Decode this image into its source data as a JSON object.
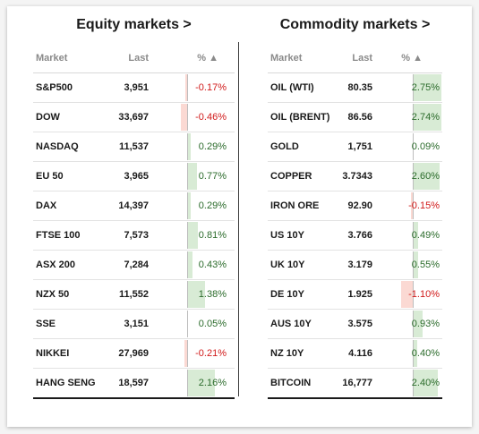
{
  "equity": {
    "title": "Equity markets >",
    "headers": {
      "market": "Market",
      "last": "Last",
      "pct": "% ▲"
    },
    "rows": [
      {
        "name": "S&P500",
        "last": "3,951",
        "pct": "-0.17%",
        "value": -0.17
      },
      {
        "name": "DOW",
        "last": "33,697",
        "pct": "-0.46%",
        "value": -0.46
      },
      {
        "name": "NASDAQ",
        "last": "11,537",
        "pct": "0.29%",
        "value": 0.29
      },
      {
        "name": "EU 50",
        "last": "3,965",
        "pct": "0.77%",
        "value": 0.77
      },
      {
        "name": "DAX",
        "last": "14,397",
        "pct": "0.29%",
        "value": 0.29
      },
      {
        "name": "FTSE 100",
        "last": "7,573",
        "pct": "0.81%",
        "value": 0.81
      },
      {
        "name": "ASX 200",
        "last": "7,284",
        "pct": "0.43%",
        "value": 0.43
      },
      {
        "name": "NZX 50",
        "last": "11,552",
        "pct": "1.38%",
        "value": 1.38
      },
      {
        "name": "SSE",
        "last": "3,151",
        "pct": "0.05%",
        "value": 0.05
      },
      {
        "name": "NIKKEI",
        "last": "27,969",
        "pct": "-0.21%",
        "value": -0.21
      },
      {
        "name": "HANG SENG",
        "last": "18,597",
        "pct": "2.16%",
        "value": 2.16
      }
    ]
  },
  "commodity": {
    "title": "Commodity markets >",
    "headers": {
      "market": "Market",
      "last": "Last",
      "pct": "% ▲"
    },
    "rows": [
      {
        "name": "OIL (WTI)",
        "last": "80.35",
        "pct": "2.75%",
        "value": 2.75
      },
      {
        "name": "OIL (BRENT)",
        "last": "86.56",
        "pct": "2.74%",
        "value": 2.74
      },
      {
        "name": "GOLD",
        "last": "1,751",
        "pct": "0.09%",
        "value": 0.09
      },
      {
        "name": "COPPER",
        "last": "3.7343",
        "pct": "2.60%",
        "value": 2.6
      },
      {
        "name": "IRON ORE",
        "last": "92.90",
        "pct": "-0.15%",
        "value": -0.15
      },
      {
        "name": "US 10Y",
        "last": "3.766",
        "pct": "0.49%",
        "value": 0.49
      },
      {
        "name": "UK 10Y",
        "last": "3.179",
        "pct": "0.55%",
        "value": 0.55
      },
      {
        "name": "DE 10Y",
        "last": "1.925",
        "pct": "-1.10%",
        "value": -1.1
      },
      {
        "name": "AUS 10Y",
        "last": "3.575",
        "pct": "0.93%",
        "value": 0.93
      },
      {
        "name": "NZ 10Y",
        "last": "4.116",
        "pct": "0.40%",
        "value": 0.4
      },
      {
        "name": "BITCOIN",
        "last": "16,777",
        "pct": "2.40%",
        "value": 2.4
      }
    ]
  },
  "colors": {
    "positive_bar": "#d8ebd5",
    "negative_bar": "#fbd9d3",
    "positive_text": "#2b6b2b",
    "negative_text": "#d11a1a"
  }
}
